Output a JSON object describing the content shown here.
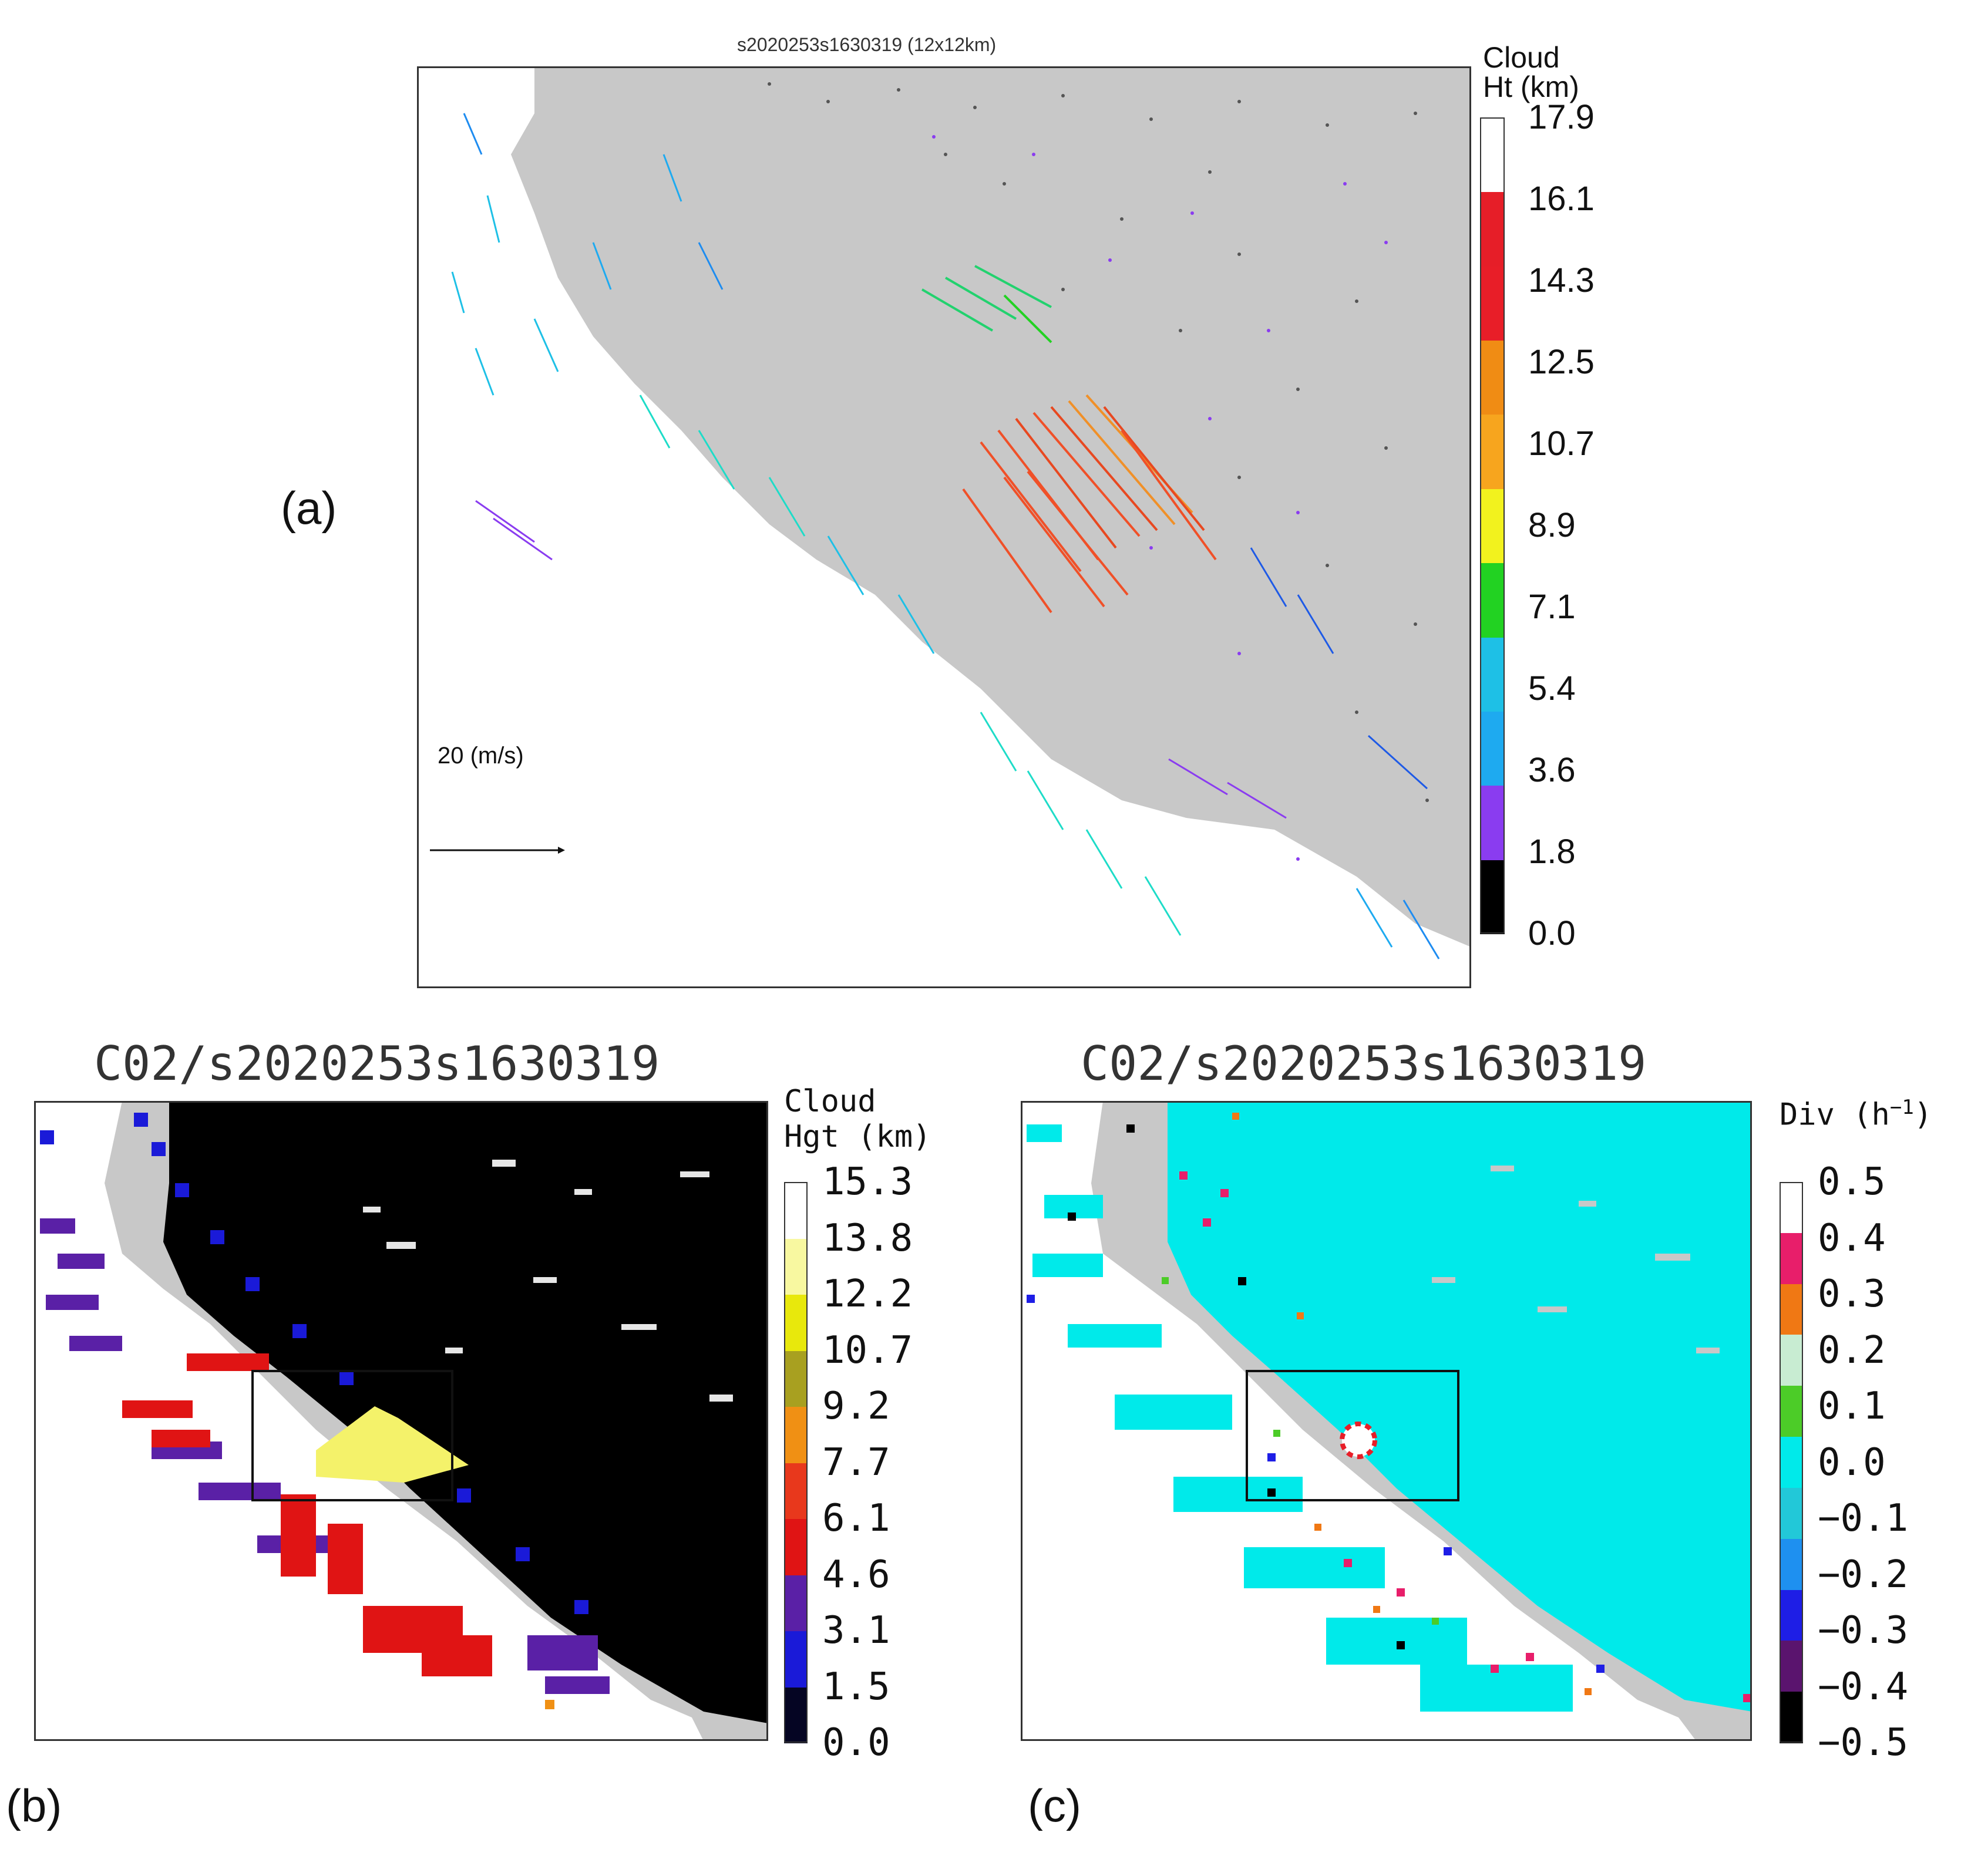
{
  "panel_a": {
    "letter": "(a)",
    "title": "s2020253s1630319 (12x12km)",
    "colorbar_title": [
      "Cloud",
      "Ht (km)"
    ],
    "scale_label": "20 (m/s)",
    "levels": [
      "0.0",
      "1.8",
      "3.6",
      "5.4",
      "7.1",
      "8.9",
      "10.7",
      "12.5",
      "14.3",
      "16.1",
      "17.9"
    ],
    "colors": [
      "#000000",
      "#8a3cf0",
      "#1eaaf0",
      "#1ec0e6",
      "#22d222",
      "#f2f21e",
      "#f7a51e",
      "#f08c14",
      "#e81e28",
      "#e61e28",
      "#ffffff"
    ]
  },
  "panel_b": {
    "letter": "(b)",
    "title": "C02/s2020253s1630319",
    "colorbar_title": [
      "Cloud",
      "Hgt (km)"
    ],
    "levels": [
      "0.0",
      "1.5",
      "3.1",
      "4.6",
      "6.1",
      "7.7",
      "9.2",
      "10.7",
      "12.2",
      "13.8",
      "15.3"
    ],
    "colors": [
      "#050523",
      "#1a1ad8",
      "#5a20a6",
      "#e01414",
      "#e8381c",
      "#f09014",
      "#a8a020",
      "#e8e80c",
      "#f8f8a0",
      "#ffffff"
    ]
  },
  "panel_c": {
    "letter": "(c)",
    "title": "C02/s2020253s1630319",
    "colorbar_title": [
      "Div (h",
      "−1",
      ")"
    ],
    "levels": [
      "0.5",
      "0.4",
      "0.3",
      "0.2",
      "0.1",
      "0.0",
      "−0.1",
      "−0.2",
      "−0.3",
      "−0.4",
      "−0.5"
    ],
    "colors": [
      "#ffffff",
      "#e81e6a",
      "#f07814",
      "#c8ecd2",
      "#4ccc28",
      "#00eaea",
      "#22c8d8",
      "#1e90f0",
      "#1e1ee6",
      "#5a146e",
      "#000000"
    ]
  },
  "colors": {
    "land": "#c8c8c8",
    "sea": "#ffffff",
    "frame": "#333333"
  }
}
